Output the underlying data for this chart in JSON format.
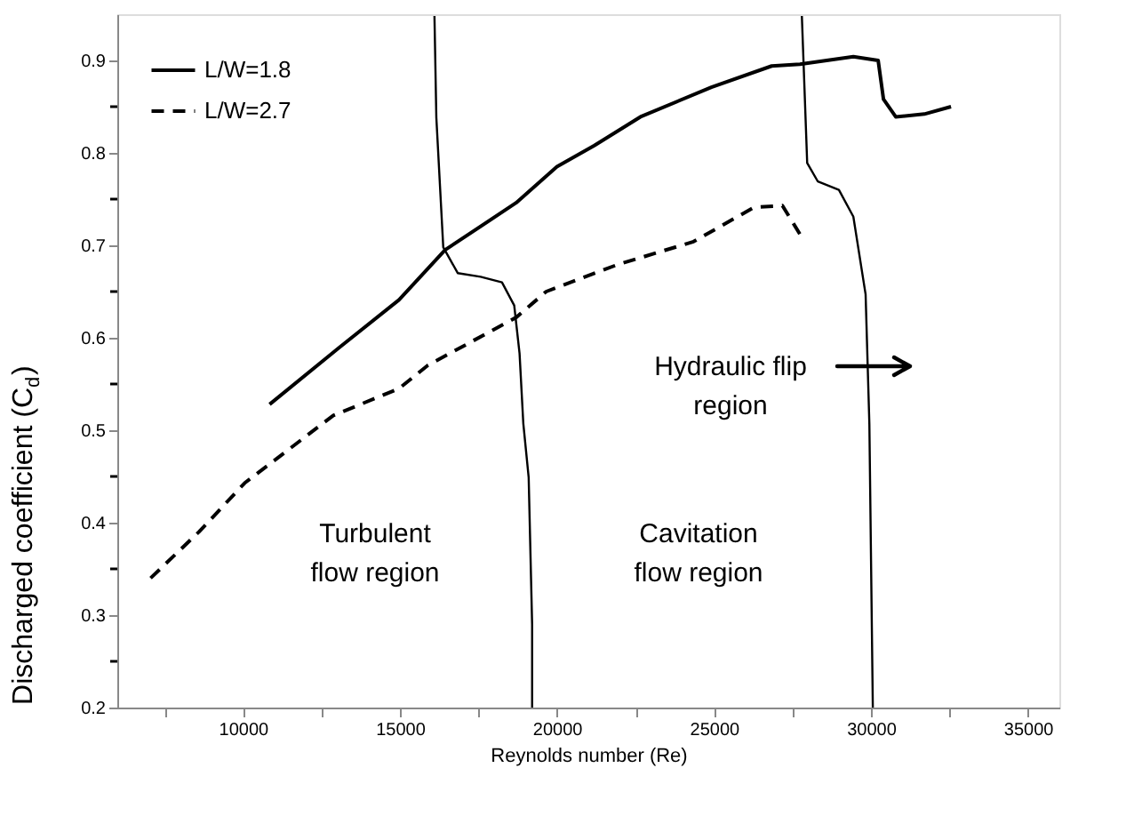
{
  "chart_data": {
    "type": "line",
    "xlabel": "Reynolds number (Re)",
    "ylabel": "Discharged coefficient (C$_{d}$)",
    "xlim": [
      6000,
      36000
    ],
    "ylim": [
      0.2,
      0.95
    ],
    "xticks": [
      {
        "value": 7500,
        "label": null
      },
      10000,
      {
        "value": 12500,
        "label": null
      },
      15000,
      {
        "value": 17500,
        "label": null
      },
      20000,
      {
        "value": 22500,
        "label": null
      },
      25000,
      {
        "value": 27500,
        "label": null
      },
      30000,
      {
        "value": 32500,
        "label": null
      },
      35000
    ],
    "yticks": [
      0.2,
      {
        "value": 0.25,
        "label": null
      },
      0.3,
      {
        "value": 0.35,
        "label": null
      },
      0.4,
      {
        "value": 0.45,
        "label": null
      },
      0.5,
      {
        "value": 0.55,
        "label": null
      },
      0.6,
      {
        "value": 0.65,
        "label": null
      },
      0.7,
      {
        "value": 0.75,
        "label": null
      },
      0.8,
      {
        "value": 0.85,
        "label": null
      },
      0.9
    ],
    "grid": false,
    "legend": "top left",
    "marker": "none",
    "series": [
      {
        "name": "L/W=1.8",
        "color": "#000000",
        "line_style": "solid",
        "x": [
          10850,
          13050,
          14970,
          16440,
          18700,
          20000,
          21190,
          22660,
          24920,
          26840,
          27740,
          29440,
          30230,
          30400,
          30790,
          31700,
          32550
        ],
        "values": [
          0.528,
          0.589,
          0.641,
          0.695,
          0.746,
          0.785,
          0.808,
          0.839,
          0.871,
          0.894,
          0.896,
          0.904,
          0.9,
          0.858,
          0.839,
          0.842,
          0.85
        ]
      },
      {
        "name": "L/W=2.7",
        "color": "#000000",
        "line_style": "dashed",
        "x": [
          7060,
          8600,
          10060,
          12880,
          14970,
          15880,
          18700,
          19660,
          21920,
          24350,
          26270,
          27180,
          27740
        ],
        "values": [
          0.34,
          0.39,
          0.443,
          0.516,
          0.545,
          0.57,
          0.622,
          0.65,
          0.679,
          0.704,
          0.741,
          0.743,
          0.712
        ]
      },
      {
        "color": "#000000",
        "line_style": "solid",
        "x": [
          16100,
          16160,
          16380,
          16840,
          17570,
          18250,
          18640,
          18810,
          18930,
          19100,
          19210,
          19210
        ],
        "values": [
          0.948,
          0.838,
          0.698,
          0.67,
          0.666,
          0.66,
          0.635,
          0.583,
          0.507,
          0.449,
          0.29,
          0.2
        ]
      },
      {
        "color": "#000000",
        "line_style": "solid",
        "x": [
          27800,
          27970,
          28310,
          28980,
          29440,
          29830,
          29950,
          30060
        ],
        "values": [
          0.948,
          0.789,
          0.769,
          0.76,
          0.731,
          0.647,
          0.507,
          0.2
        ]
      }
    ],
    "annotations": [
      "Turbulent\nflow region",
      "Cavitation\nflow region",
      "Hydraulic flip\nregion"
    ]
  }
}
